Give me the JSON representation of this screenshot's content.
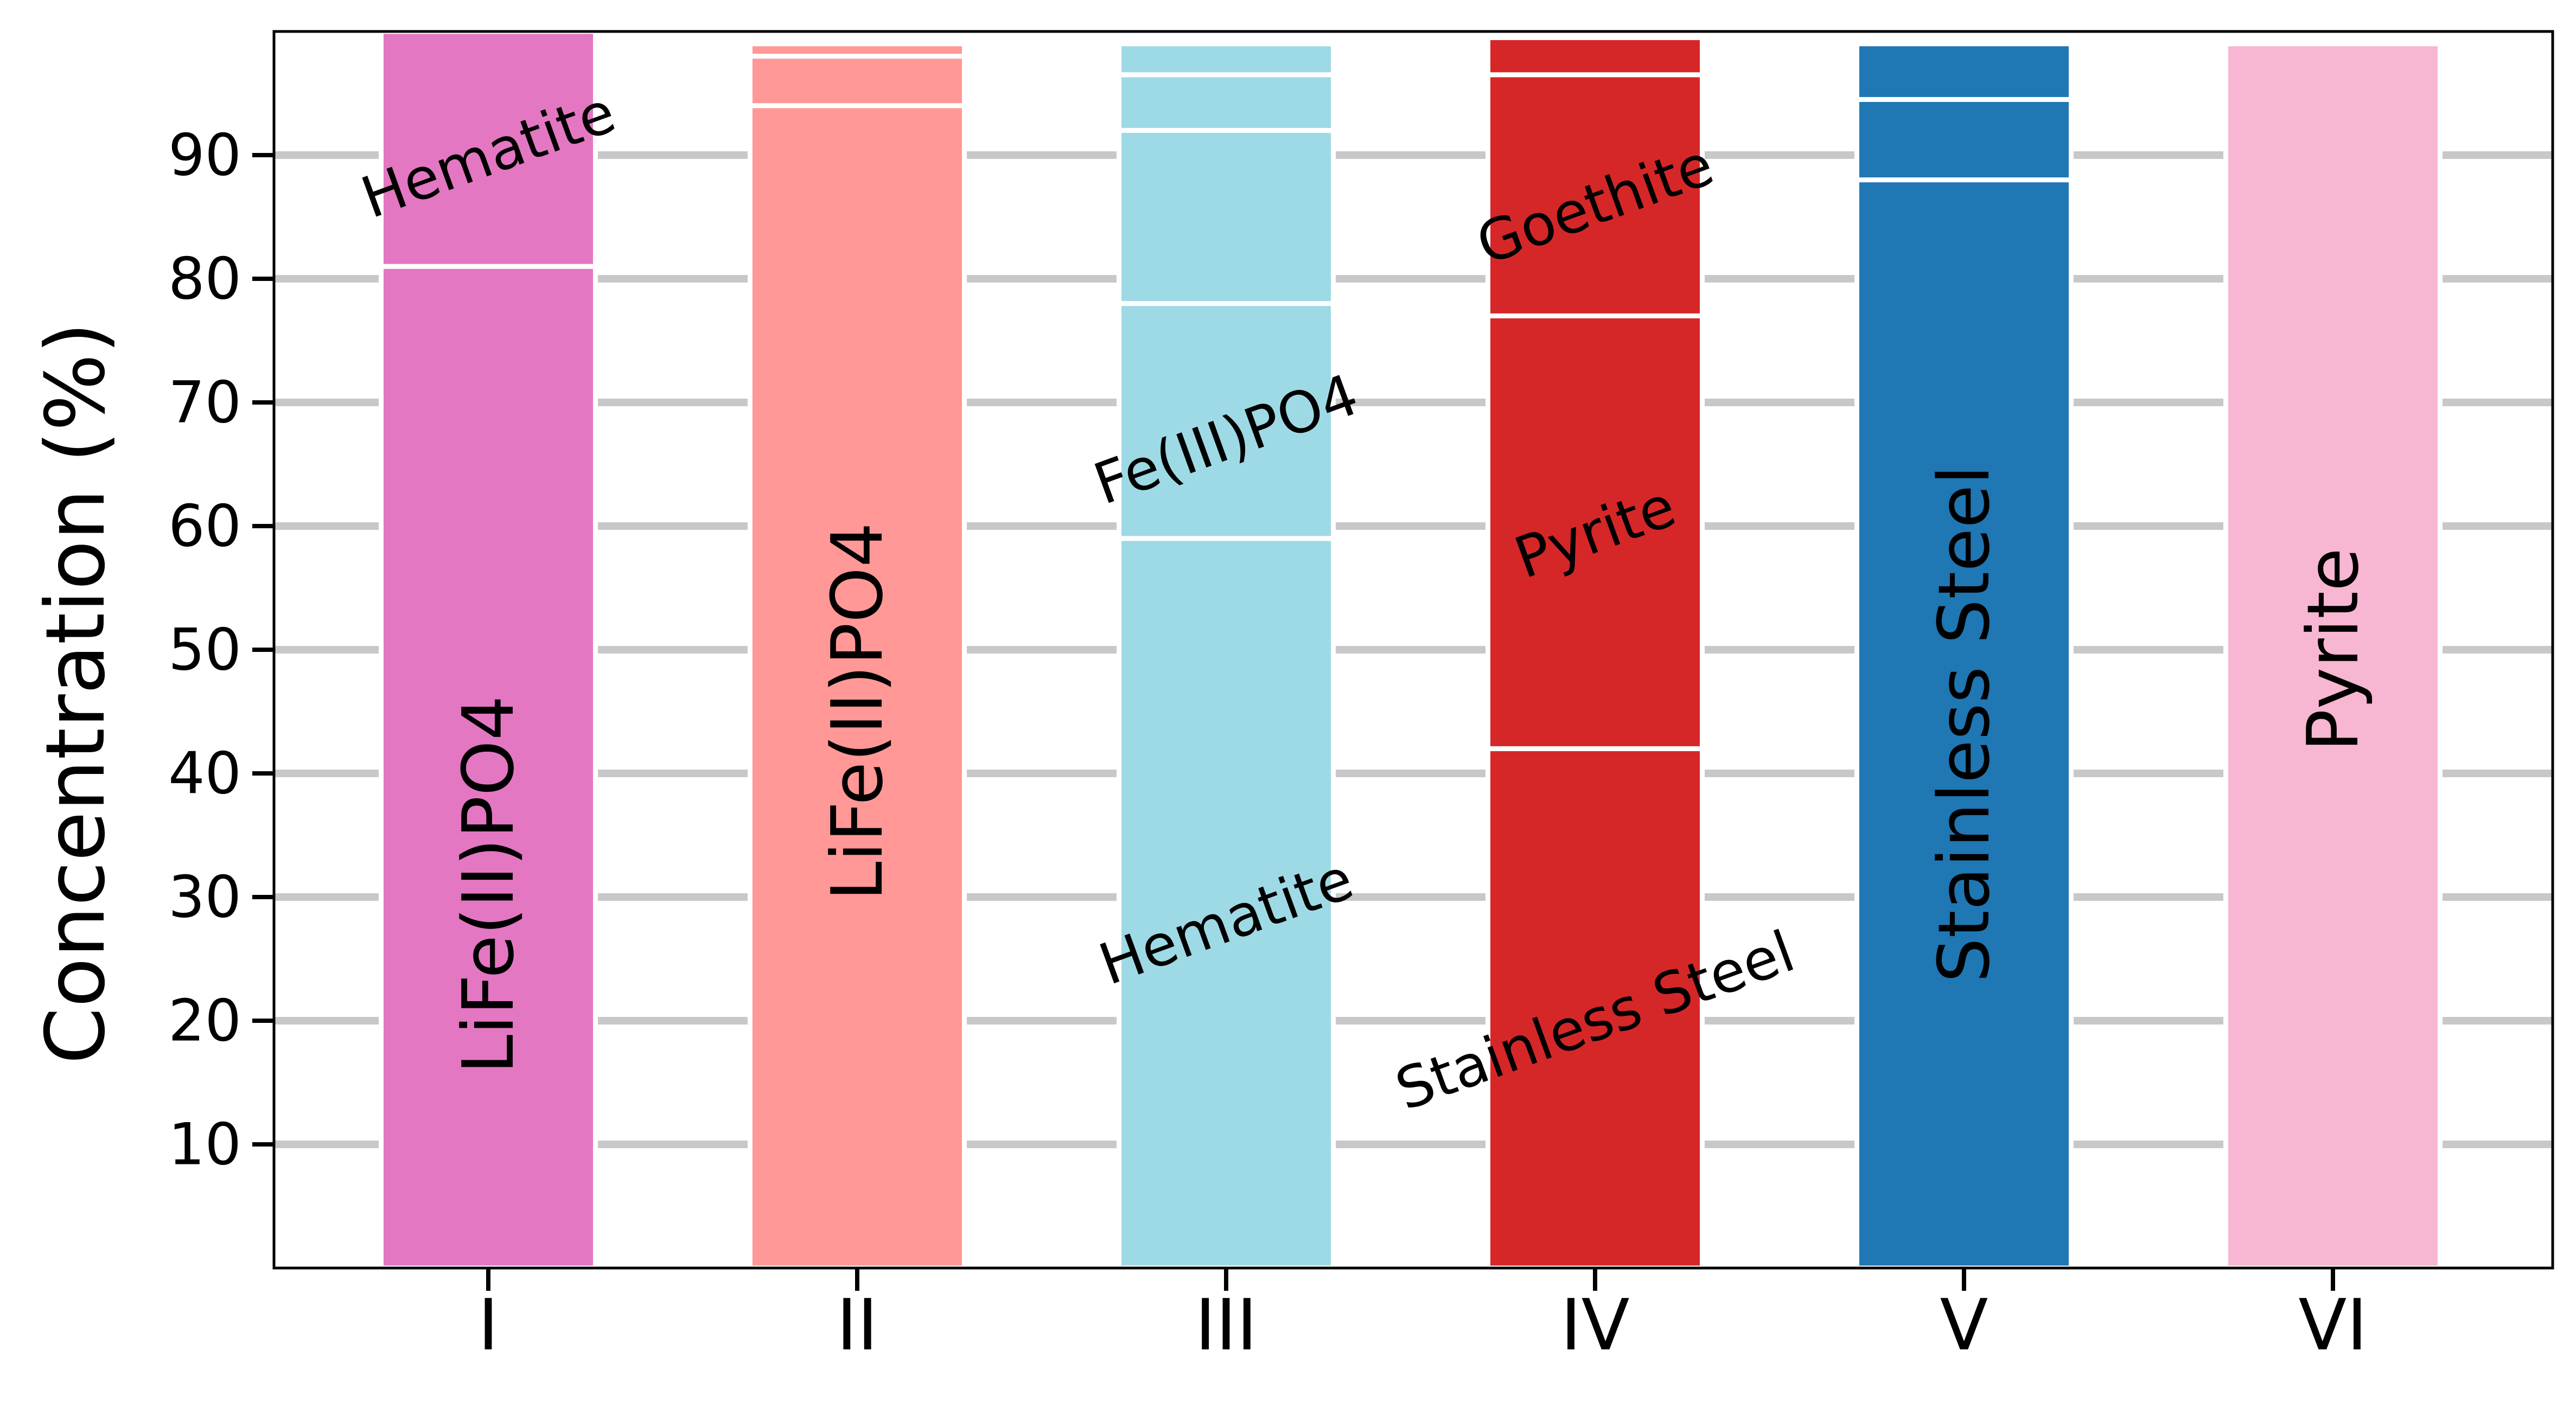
{
  "chart_data": {
    "type": "bar",
    "stacked": true,
    "ylabel": "Concentration (%)",
    "xlabel": "",
    "ylim": [
      0,
      100
    ],
    "yticks": [
      10,
      20,
      30,
      40,
      50,
      60,
      70,
      80,
      90
    ],
    "grid": "horizontal",
    "categories": [
      "I",
      "II",
      "III",
      "IV",
      "V",
      "VI"
    ],
    "bars": [
      {
        "category": "I",
        "color": "#e377c2",
        "segments": [
          {
            "value": 81,
            "label": "LiFe(II)PO4",
            "rotate": -90,
            "label_y": 31
          },
          {
            "value": 19,
            "label": "Hematite",
            "rotate": -20,
            "label_y": 90
          }
        ]
      },
      {
        "category": "II",
        "color": "#ff9896",
        "segments": [
          {
            "value": 94,
            "label": "LiFe(II)PO4",
            "rotate": -90,
            "label_y": 45
          },
          {
            "value": 4,
            "label": "",
            "rotate": 0,
            "label_y": 0
          },
          {
            "value": 1,
            "label": "",
            "rotate": 0,
            "label_y": 0
          }
        ]
      },
      {
        "category": "III",
        "color": "#9edae5",
        "segments": [
          {
            "value": 59,
            "label": "Hematite",
            "rotate": -20,
            "label_y": 28
          },
          {
            "value": 19,
            "label": "Fe(III)PO4",
            "rotate": -20,
            "label_y": 67
          },
          {
            "value": 14,
            "label": "",
            "rotate": 0,
            "label_y": 0
          },
          {
            "value": 4.5,
            "label": "",
            "rotate": 0,
            "label_y": 0
          },
          {
            "value": 2.5,
            "label": "",
            "rotate": 0,
            "label_y": 0
          }
        ]
      },
      {
        "category": "IV",
        "color": "#d62728",
        "segments": [
          {
            "value": 42,
            "label": "Stainless Steel",
            "rotate": -20,
            "label_y": 20
          },
          {
            "value": 35,
            "label": "Pyrite",
            "rotate": -20,
            "label_y": 59.5
          },
          {
            "value": 19.5,
            "label": "Goethite",
            "rotate": -20,
            "label_y": 86
          },
          {
            "value": 3,
            "label": "",
            "rotate": 0,
            "label_y": 0
          }
        ]
      },
      {
        "category": "V",
        "color": "#1f77b4",
        "segments": [
          {
            "value": 88,
            "label": "Stainless Steel",
            "rotate": -90,
            "label_y": 44
          },
          {
            "value": 6.5,
            "label": "",
            "rotate": 0,
            "label_y": 0
          },
          {
            "value": 4.5,
            "label": "",
            "rotate": 0,
            "label_y": 0
          }
        ]
      },
      {
        "category": "VI",
        "color": "#f7b6d2",
        "segments": [
          {
            "value": 99,
            "label": "Pyrite",
            "rotate": -90,
            "label_y": 50
          }
        ]
      }
    ]
  }
}
